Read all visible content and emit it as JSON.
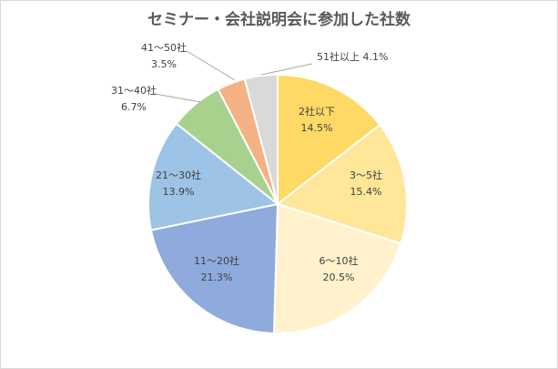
{
  "chart_data": {
    "type": "pie",
    "title": "セミナー・会社説明会に参加した社数",
    "slices": [
      {
        "category": "2社以下",
        "value": 14.5,
        "label": "14.5%",
        "color": "#ffd966"
      },
      {
        "category": "3～5社",
        "value": 15.4,
        "label": "15.4%",
        "color": "#ffe699"
      },
      {
        "category": "6～10社",
        "value": 20.5,
        "label": "20.5%",
        "color": "#fff2cc"
      },
      {
        "category": "11～20社",
        "value": 21.3,
        "label": "21.3%",
        "color": "#8faadc"
      },
      {
        "category": "21～30社",
        "value": 13.9,
        "label": "13.9%",
        "color": "#9dc3e6"
      },
      {
        "category": "31～40社",
        "value": 6.7,
        "label": "6.7%",
        "color": "#a9d18e"
      },
      {
        "category": "41～50社",
        "value": 3.5,
        "label": "3.5%",
        "color": "#f4b183"
      },
      {
        "category": "51社以上",
        "value": 4.1,
        "label": "4.1%",
        "color": "#d9d9d9"
      }
    ]
  }
}
